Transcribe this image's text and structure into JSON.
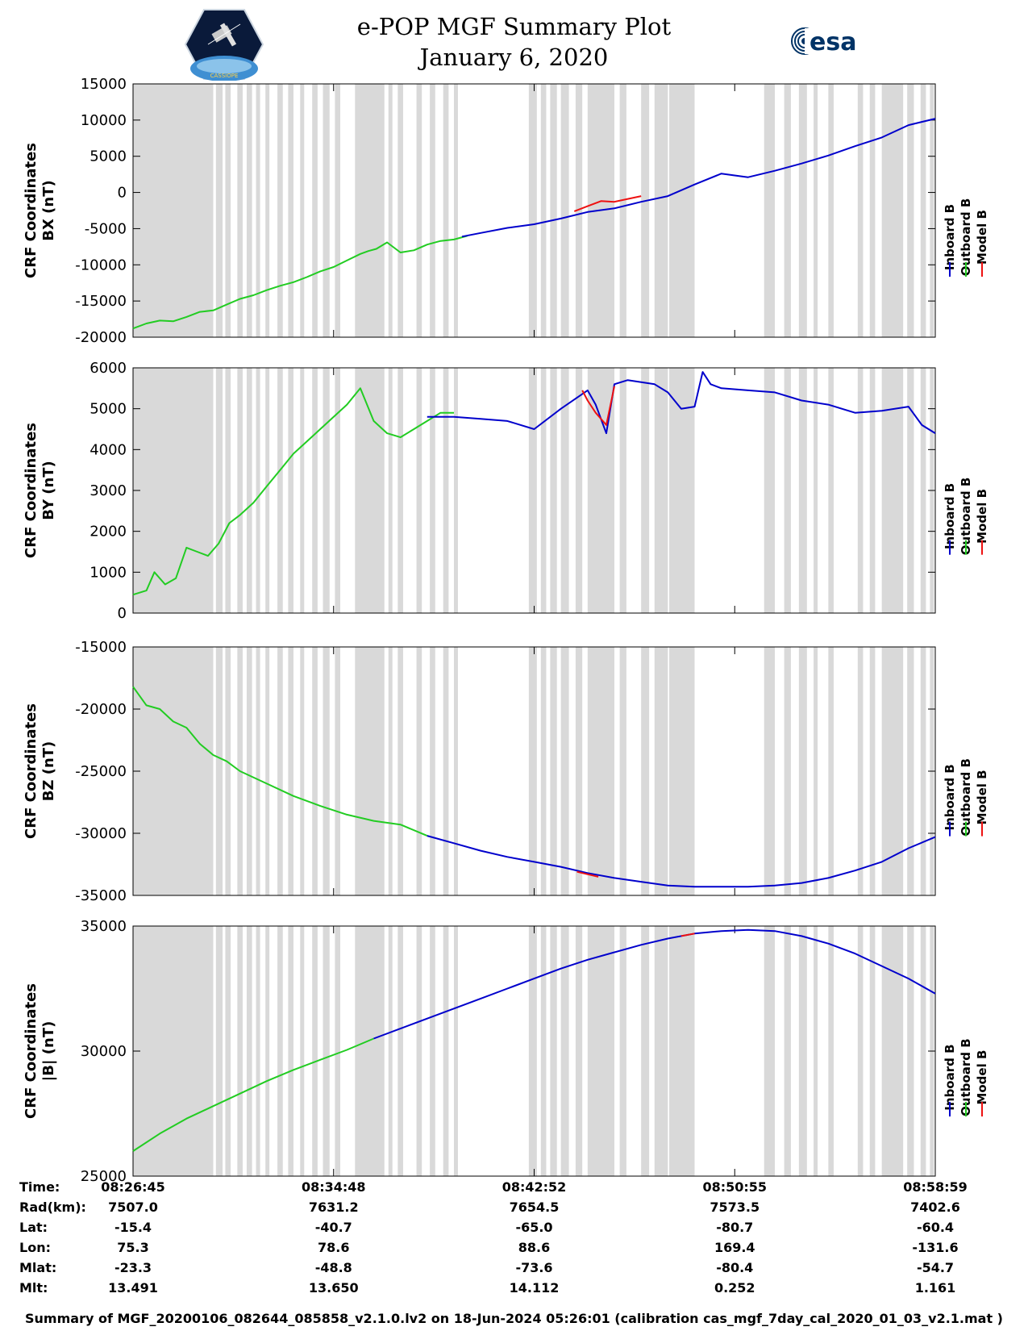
{
  "header": {
    "title_line1": "e-POP MGF Summary Plot",
    "title_line2": "January 6, 2020",
    "logo_left": "CASSIOPE",
    "logo_right": "esa"
  },
  "colors": {
    "inboard": "#0000cc",
    "outboard": "#22cc22",
    "model": "#ee1111",
    "shade": "#d9d9d9"
  },
  "chart_data": [
    {
      "type": "line",
      "title": "",
      "ylabel_line1": "CRF Coordinates",
      "ylabel_line2": "BX (nT)",
      "ylim": [
        -20000,
        15000
      ],
      "yticks": [
        15000,
        10000,
        5000,
        0,
        -5000,
        -10000,
        -15000,
        -20000
      ],
      "ytick_labels": [
        "15000",
        "10000",
        "5000",
        "0",
        "-5000",
        "-10000",
        "-15000",
        "-20000"
      ],
      "xlim": [
        0,
        30
      ],
      "legend": [
        "Inboard B",
        "Outboard B",
        "Model B"
      ],
      "series": [
        {
          "name": "Outboard B",
          "x": [
            0,
            0.5,
            1,
            1.5,
            2,
            2.5,
            3,
            3.5,
            4,
            4.5,
            5,
            5.5,
            6,
            6.5,
            7,
            7.5,
            8,
            8.5,
            8.8,
            9.1,
            9.5,
            10,
            10.5,
            11,
            11.5,
            12,
            12.5
          ],
          "values": [
            -18800,
            -18100,
            -17700,
            -17800,
            -17200,
            -16500,
            -16300,
            -15500,
            -14700,
            -14200,
            -13500,
            -12900,
            -12400,
            -11700,
            -10900,
            -10300,
            -9400,
            -8500,
            -8100,
            -7800,
            -6900,
            -8300,
            -8000,
            -7200,
            -6700,
            -6500,
            -6000
          ]
        },
        {
          "name": "Inboard B",
          "x": [
            12.3,
            13,
            14,
            15,
            16,
            17,
            18,
            19,
            20,
            21,
            22,
            23,
            24,
            25,
            26,
            27,
            28,
            29,
            30
          ],
          "values": [
            -6100,
            -5600,
            -4900,
            -4400,
            -3600,
            -2700,
            -2200,
            -1300,
            -500,
            1100,
            2600,
            2100,
            3000,
            4000,
            5100,
            6400,
            7600,
            9300,
            10200
          ]
        },
        {
          "name": "Model B",
          "x": [
            16.5,
            17,
            17.5,
            18,
            18.5,
            19
          ],
          "values": [
            -2600,
            -1900,
            -1200,
            -1300,
            -900,
            -500
          ]
        }
      ]
    },
    {
      "type": "line",
      "title": "",
      "ylabel_line1": "CRF Coordinates",
      "ylabel_line2": "BY (nT)",
      "ylim": [
        0,
        6000
      ],
      "yticks": [
        6000,
        5000,
        4000,
        3000,
        2000,
        1000,
        0
      ],
      "ytick_labels": [
        "6000",
        "5000",
        "4000",
        "3000",
        "2000",
        "1000",
        "0"
      ],
      "xlim": [
        0,
        30
      ],
      "legend": [
        "Inboard B",
        "Outboard B",
        "Model B"
      ],
      "series": [
        {
          "name": "Outboard B",
          "x": [
            0,
            0.5,
            0.8,
            1.2,
            1.6,
            2,
            2.4,
            2.8,
            3.2,
            3.6,
            4,
            4.5,
            5,
            5.5,
            6,
            6.5,
            7,
            7.5,
            8,
            8.5,
            9,
            9.5,
            10,
            10.5,
            11,
            11.5,
            12
          ],
          "values": [
            450,
            550,
            1000,
            700,
            850,
            1600,
            1500,
            1400,
            1700,
            2200,
            2400,
            2700,
            3100,
            3500,
            3900,
            4200,
            4500,
            4800,
            5100,
            5500,
            4700,
            4400,
            4300,
            4500,
            4700,
            4900,
            4900
          ]
        },
        {
          "name": "Inboard B",
          "x": [
            11,
            12,
            13,
            14,
            15,
            16,
            17,
            17.3,
            17.7,
            18,
            18.5,
            19,
            19.5,
            20,
            20.5,
            21,
            21.3,
            21.6,
            22,
            23,
            24,
            25,
            26,
            27,
            28,
            29,
            29.5,
            30
          ],
          "values": [
            4800,
            4800,
            4750,
            4700,
            4500,
            5000,
            5450,
            5100,
            4400,
            5600,
            5700,
            5650,
            5600,
            5400,
            5000,
            5050,
            5900,
            5600,
            5500,
            5450,
            5400,
            5200,
            5100,
            4900,
            4950,
            5050,
            4600,
            4400
          ]
        },
        {
          "name": "Model B",
          "x": [
            16.8,
            17,
            17.3,
            17.7,
            18
          ],
          "values": [
            5450,
            5200,
            4900,
            4600,
            5550
          ]
        }
      ]
    },
    {
      "type": "line",
      "title": "",
      "ylabel_line1": "CRF Coordinates",
      "ylabel_line2": "BZ (nT)",
      "ylim": [
        -35000,
        -15000
      ],
      "yticks": [
        -15000,
        -20000,
        -25000,
        -30000,
        -35000
      ],
      "ytick_labels": [
        "-15000",
        "-20000",
        "-25000",
        "-30000",
        "-35000"
      ],
      "xlim": [
        0,
        30
      ],
      "legend": [
        "Inboard B",
        "Outboard B",
        "Model B"
      ],
      "series": [
        {
          "name": "Outboard B",
          "x": [
            0,
            0.5,
            1,
            1.5,
            2,
            2.5,
            3,
            3.5,
            4,
            5,
            6,
            7,
            8,
            9,
            10,
            11
          ],
          "values": [
            -18200,
            -19700,
            -20000,
            -21000,
            -21500,
            -22800,
            -23700,
            -24200,
            -25000,
            -26000,
            -27000,
            -27800,
            -28500,
            -29000,
            -29300,
            -30200
          ]
        },
        {
          "name": "Inboard B",
          "x": [
            11,
            12,
            13,
            14,
            15,
            16,
            17,
            18,
            19,
            20,
            21,
            22,
            23,
            24,
            25,
            26,
            27,
            28,
            29,
            30
          ],
          "values": [
            -30200,
            -30800,
            -31400,
            -31900,
            -32300,
            -32700,
            -33200,
            -33600,
            -33900,
            -34200,
            -34300,
            -34300,
            -34300,
            -34200,
            -34000,
            -33600,
            -33000,
            -32300,
            -31200,
            -30300
          ]
        },
        {
          "name": "Model B",
          "x": [
            16.6,
            17,
            17.4
          ],
          "values": [
            -33100,
            -33300,
            -33500
          ]
        }
      ]
    },
    {
      "type": "line",
      "title": "",
      "ylabel_line1": "CRF Coordinates",
      "ylabel_line2": "|B| (nT)",
      "ylim": [
        25000,
        35000
      ],
      "yticks": [
        35000,
        30000,
        25000
      ],
      "ytick_labels": [
        "35000",
        "30000",
        "25000"
      ],
      "xlim": [
        0,
        30
      ],
      "legend": [
        "Inboard B",
        "Outboard B",
        "Model B"
      ],
      "series": [
        {
          "name": "Outboard B",
          "x": [
            0,
            1,
            2,
            3,
            4,
            5,
            6,
            7,
            8,
            9
          ],
          "values": [
            26000,
            26700,
            27300,
            27800,
            28300,
            28800,
            29250,
            29650,
            30050,
            30500
          ]
        },
        {
          "name": "Inboard B",
          "x": [
            9,
            10,
            11,
            12,
            13,
            14,
            15,
            16,
            17,
            18,
            19,
            20,
            21,
            22,
            23,
            24,
            25,
            26,
            27,
            28,
            29,
            30
          ],
          "values": [
            30500,
            30900,
            31300,
            31700,
            32100,
            32500,
            32900,
            33300,
            33650,
            33950,
            34250,
            34500,
            34700,
            34800,
            34850,
            34800,
            34600,
            34300,
            33900,
            33400,
            32900,
            32300
          ]
        },
        {
          "name": "Model B",
          "x": [
            20.5,
            21
          ],
          "values": [
            34600,
            34700
          ]
        }
      ]
    }
  ],
  "shaded_spans": [
    [
      0,
      3.0
    ],
    [
      3.1,
      3.35
    ],
    [
      3.45,
      3.65
    ],
    [
      3.9,
      4.1
    ],
    [
      4.25,
      4.45
    ],
    [
      4.6,
      4.75
    ],
    [
      4.95,
      5.1
    ],
    [
      5.4,
      5.6
    ],
    [
      5.8,
      6.0
    ],
    [
      6.25,
      6.4
    ],
    [
      6.7,
      6.9
    ],
    [
      7.1,
      7.35
    ],
    [
      7.55,
      7.75
    ],
    [
      8.3,
      9.4
    ],
    [
      9.55,
      9.7
    ],
    [
      9.9,
      10.1
    ],
    [
      10.6,
      10.8
    ],
    [
      11.1,
      11.3
    ],
    [
      11.6,
      11.8
    ],
    [
      12.0,
      12.15
    ],
    [
      14.8,
      15.1
    ],
    [
      15.25,
      15.45
    ],
    [
      15.6,
      15.85
    ],
    [
      16.0,
      16.3
    ],
    [
      16.55,
      16.8
    ],
    [
      17.0,
      18.0
    ],
    [
      18.2,
      18.45
    ],
    [
      19.0,
      19.3
    ],
    [
      19.5,
      20.0
    ],
    [
      20.05,
      21.0
    ],
    [
      23.6,
      24.0
    ],
    [
      24.35,
      24.6
    ],
    [
      24.9,
      25.2
    ],
    [
      25.45,
      25.6
    ],
    [
      26.0,
      26.2
    ],
    [
      27.1,
      27.3
    ],
    [
      27.55,
      27.75
    ],
    [
      28.0,
      28.8
    ],
    [
      28.95,
      29.2
    ],
    [
      29.45,
      29.65
    ],
    [
      29.8,
      29.95
    ]
  ],
  "x_axis": {
    "tick_positions": [
      0,
      7.5,
      15,
      22.5,
      30
    ],
    "rows": [
      {
        "label": "Time:",
        "values": [
          "08:26:45",
          "08:34:48",
          "08:42:52",
          "08:50:55",
          "08:58:59"
        ]
      },
      {
        "label": "Rad(km):",
        "values": [
          "7507.0",
          "7631.2",
          "7654.5",
          "7573.5",
          "7402.6"
        ]
      },
      {
        "label": "Lat:",
        "values": [
          "-15.4",
          "-40.7",
          "-65.0",
          "-80.7",
          "-60.4"
        ]
      },
      {
        "label": "Lon:",
        "values": [
          "75.3",
          "78.6",
          "88.6",
          "169.4",
          "-131.6"
        ]
      },
      {
        "label": "Mlat:",
        "values": [
          "-23.3",
          "-48.8",
          "-73.6",
          "-80.4",
          "-54.7"
        ]
      },
      {
        "label": "Mlt:",
        "values": [
          "13.491",
          "13.650",
          "14.112",
          "0.252",
          "1.161"
        ]
      }
    ]
  },
  "footer": "Summary of MGF_20200106_082644_085858_v2.1.0.lv2 on 18-Jun-2024 05:26:01 (calibration cas_mgf_7day_cal_2020_01_03_v2.1.mat )"
}
